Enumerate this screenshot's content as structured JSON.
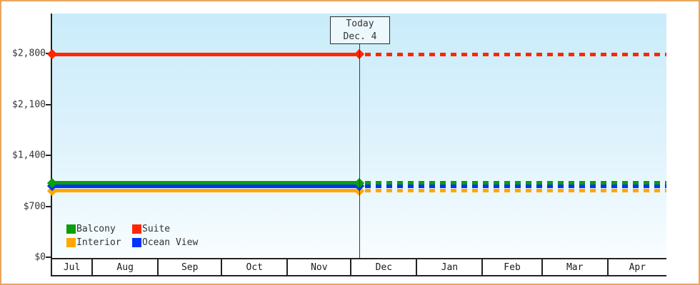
{
  "chart_data": {
    "type": "line",
    "title": "",
    "description": "Cruise cabin price history by category; flat historical prices to the left of the Today marker, projected dashed prices to the right",
    "y_axis": {
      "tick_labels": [
        "$0",
        "$700",
        "$1,400",
        "$2,100",
        "$2,800"
      ],
      "tick_values": [
        0,
        700,
        1400,
        2100,
        2800
      ],
      "axis_max_visible": 3360,
      "grid": "off"
    },
    "x_axis": {
      "months": [
        "Jul",
        "Aug",
        "Sep",
        "Oct",
        "Nov",
        "Dec",
        "Jan",
        "Feb",
        "Mar",
        "Apr"
      ],
      "month_spans_days": [
        19,
        31,
        30,
        31,
        30,
        31,
        31,
        28,
        31,
        28
      ]
    },
    "today": {
      "line1": "Today",
      "line2": "Dec. 4",
      "fraction_of_x_axis": 0.5
    },
    "series": [
      {
        "name": "Suite",
        "color": "#ff2600",
        "value": 2790,
        "z": 6,
        "style": "solid-then-dashed"
      },
      {
        "name": "Balcony",
        "color": "#0a9e0a",
        "value": 1020,
        "z": 6,
        "style": "solid-then-dashed"
      },
      {
        "name": "Ocean View",
        "color": "#0233fa",
        "value": 975,
        "z": 5,
        "style": "solid-then-dashed"
      },
      {
        "name": "Interior",
        "color": "#ffa800",
        "value": 915,
        "z": 4,
        "style": "solid-then-dashed"
      }
    ],
    "legend": {
      "position": "bottom-left",
      "items_in_order": [
        "Balcony",
        "Suite",
        "Interior",
        "Ocean View"
      ]
    }
  }
}
